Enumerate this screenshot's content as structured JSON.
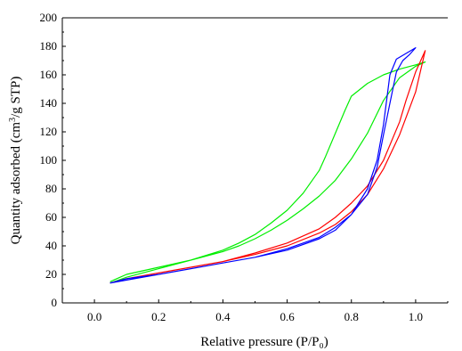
{
  "chart_data": {
    "type": "line",
    "xlabel": "Relative pressure (P/P₀)",
    "ylabel_parts": {
      "before": "Quantity adsorbed (cm",
      "sup": "3",
      "after": "/g STP)"
    },
    "xlim": [
      -0.1,
      1.1
    ],
    "ylim": [
      0,
      200
    ],
    "xticks": [
      0.0,
      0.2,
      0.4,
      0.6,
      0.8,
      1.0
    ],
    "xtick_labels": [
      "0.0",
      "0.2",
      "0.4",
      "0.6",
      "0.8",
      "1.0"
    ],
    "yticks": [
      0,
      20,
      40,
      60,
      80,
      100,
      120,
      140,
      160,
      180,
      200
    ],
    "ytick_labels": [
      "0",
      "20",
      "40",
      "60",
      "80",
      "100",
      "120",
      "140",
      "160",
      "180",
      "200"
    ],
    "grid": false,
    "series": [
      {
        "color": "#00ee00",
        "points": [
          [
            0.05,
            14
          ],
          [
            0.1,
            18
          ],
          [
            0.2,
            24
          ],
          [
            0.3,
            30
          ],
          [
            0.4,
            36
          ],
          [
            0.45,
            40
          ],
          [
            0.5,
            45
          ],
          [
            0.55,
            51
          ],
          [
            0.6,
            58
          ],
          [
            0.65,
            66
          ],
          [
            0.7,
            75
          ],
          [
            0.75,
            86
          ],
          [
            0.8,
            101
          ],
          [
            0.85,
            119
          ],
          [
            0.9,
            142
          ],
          [
            0.95,
            158
          ],
          [
            1.0,
            166
          ],
          [
            1.03,
            169
          ],
          [
            1.0,
            167
          ],
          [
            0.95,
            164
          ],
          [
            0.9,
            160
          ],
          [
            0.85,
            154
          ],
          [
            0.8,
            145
          ],
          [
            0.78,
            135
          ],
          [
            0.75,
            119
          ],
          [
            0.72,
            103
          ],
          [
            0.7,
            93
          ],
          [
            0.65,
            77
          ],
          [
            0.6,
            65
          ],
          [
            0.55,
            56
          ],
          [
            0.5,
            48
          ],
          [
            0.45,
            42
          ],
          [
            0.4,
            37
          ],
          [
            0.3,
            30
          ],
          [
            0.2,
            25
          ],
          [
            0.1,
            20
          ],
          [
            0.05,
            15
          ]
        ]
      },
      {
        "color": "#ff0000",
        "points": [
          [
            0.05,
            14
          ],
          [
            0.1,
            17
          ],
          [
            0.2,
            21
          ],
          [
            0.3,
            25
          ],
          [
            0.4,
            29
          ],
          [
            0.5,
            34
          ],
          [
            0.6,
            40
          ],
          [
            0.7,
            49
          ],
          [
            0.75,
            55
          ],
          [
            0.8,
            64
          ],
          [
            0.85,
            76
          ],
          [
            0.9,
            94
          ],
          [
            0.95,
            118
          ],
          [
            1.0,
            148
          ],
          [
            1.03,
            177
          ],
          [
            1.0,
            162
          ],
          [
            0.97,
            142
          ],
          [
            0.95,
            127
          ],
          [
            0.9,
            100
          ],
          [
            0.85,
            82
          ],
          [
            0.8,
            70
          ],
          [
            0.75,
            60
          ],
          [
            0.7,
            52
          ],
          [
            0.6,
            42
          ],
          [
            0.5,
            35
          ],
          [
            0.4,
            29
          ],
          [
            0.3,
            25
          ],
          [
            0.2,
            21
          ],
          [
            0.1,
            17
          ],
          [
            0.05,
            14
          ]
        ]
      },
      {
        "color": "#0000ff",
        "points": [
          [
            0.05,
            14
          ],
          [
            0.1,
            16
          ],
          [
            0.2,
            20
          ],
          [
            0.3,
            24
          ],
          [
            0.4,
            28
          ],
          [
            0.5,
            32
          ],
          [
            0.6,
            37
          ],
          [
            0.7,
            45
          ],
          [
            0.75,
            51
          ],
          [
            0.8,
            62
          ],
          [
            0.85,
            80
          ],
          [
            0.88,
            100
          ],
          [
            0.9,
            125
          ],
          [
            0.92,
            160
          ],
          [
            0.94,
            171
          ],
          [
            0.97,
            175
          ],
          [
            1.0,
            179
          ],
          [
            0.98,
            174
          ],
          [
            0.96,
            170
          ],
          [
            0.94,
            162
          ],
          [
            0.92,
            140
          ],
          [
            0.9,
            118
          ],
          [
            0.88,
            95
          ],
          [
            0.85,
            76
          ],
          [
            0.8,
            62
          ],
          [
            0.75,
            53
          ],
          [
            0.7,
            46
          ],
          [
            0.6,
            38
          ],
          [
            0.5,
            32
          ],
          [
            0.4,
            28
          ],
          [
            0.3,
            24
          ],
          [
            0.2,
            20
          ],
          [
            0.1,
            17
          ],
          [
            0.05,
            14
          ]
        ]
      }
    ]
  }
}
